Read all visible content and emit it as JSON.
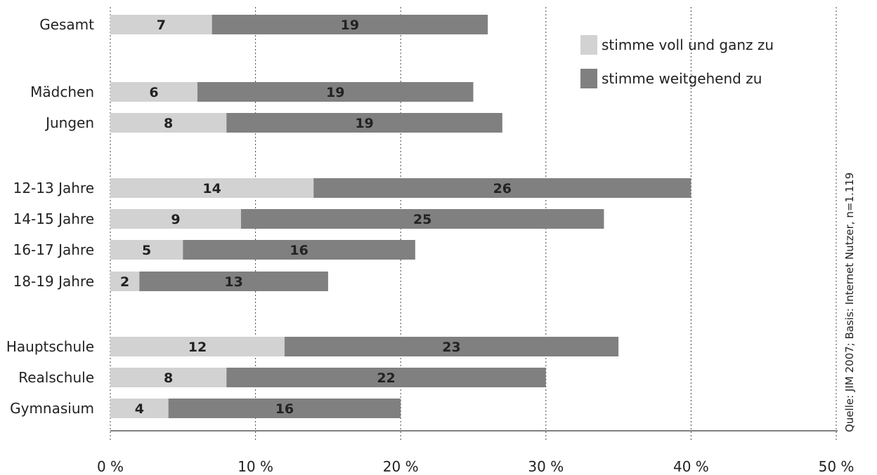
{
  "chart_data": {
    "type": "bar",
    "orientation": "horizontal",
    "stacked": true,
    "categories": [
      "Gesamt",
      "Mädchen",
      "Jungen",
      "12-13 Jahre",
      "14-15 Jahre",
      "16-17 Jahre",
      "18-19 Jahre",
      "Hauptschule",
      "Realschule",
      "Gymnasium"
    ],
    "groups": [
      [
        "Gesamt"
      ],
      [
        "Mädchen",
        "Jungen"
      ],
      [
        "12-13 Jahre",
        "14-15 Jahre",
        "16-17 Jahre",
        "18-19 Jahre"
      ],
      [
        "Hauptschule",
        "Realschule",
        "Gymnasium"
      ]
    ],
    "series": [
      {
        "name": "stimme voll und ganz zu",
        "color": "#d2d2d2",
        "values": [
          7,
          6,
          8,
          14,
          9,
          5,
          2,
          12,
          8,
          4
        ]
      },
      {
        "name": "stimme weitgehend zu",
        "color": "#808080",
        "values": [
          19,
          19,
          19,
          26,
          25,
          16,
          13,
          23,
          22,
          16
        ]
      }
    ],
    "xlim": [
      0,
      50
    ],
    "xticks": [
      0,
      10,
      20,
      30,
      40,
      50
    ],
    "xtick_labels": [
      "0 %",
      "10 %",
      "20 %",
      "30 %",
      "40 %",
      "50 %"
    ],
    "grid": "vertical-dotted",
    "legend_position": "top-right",
    "source": "Quelle: JIM 2007; Basis: Internet Nutzer, n=1.119",
    "title": "",
    "xlabel": "",
    "ylabel": ""
  }
}
